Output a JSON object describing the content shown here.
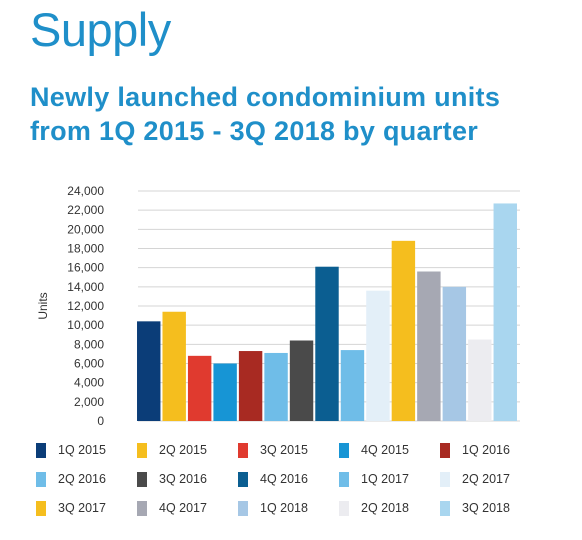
{
  "header": {
    "heading": "Supply",
    "subtitle_line1": "Newly launched condominium units",
    "subtitle_line2": "from 1Q 2015 - 3Q 2018 by quarter"
  },
  "chart_data": {
    "type": "bar",
    "title": "",
    "xlabel": "",
    "ylabel": "Units",
    "ylim": [
      0,
      24000
    ],
    "yticks": [
      0,
      2000,
      4000,
      6000,
      8000,
      10000,
      12000,
      14000,
      16000,
      18000,
      20000,
      22000,
      24000
    ],
    "ytick_labels": [
      "0",
      "2,000",
      "4,000",
      "6,000",
      "8,000",
      "10,000",
      "12,000",
      "14,000",
      "16,000",
      "18,000",
      "20,000",
      "22,000",
      "24,000"
    ],
    "grid": true,
    "legend_position": "bottom",
    "categories": [
      "1Q 2015",
      "2Q 2015",
      "3Q 2015",
      "4Q 2015",
      "1Q 2016",
      "2Q 2016",
      "3Q 2016",
      "4Q 2016",
      "1Q 2017",
      "2Q 2017",
      "3Q 2017",
      "4Q 2017",
      "1Q 2018",
      "2Q 2018",
      "3Q 2018"
    ],
    "values": [
      10400,
      11400,
      6800,
      6000,
      7300,
      7100,
      8400,
      16100,
      7400,
      13600,
      18800,
      15600,
      14000,
      8500,
      22700
    ],
    "colors": [
      "#0b3d78",
      "#f5be1e",
      "#e03a2f",
      "#1795d5",
      "#a82a22",
      "#6fbde8",
      "#4a4a4a",
      "#0b5e91",
      "#6fbde8",
      "#e3eff8",
      "#f5be1e",
      "#a6a8b3",
      "#a6c7e5",
      "#ececf0",
      "#a9d6ef"
    ]
  }
}
